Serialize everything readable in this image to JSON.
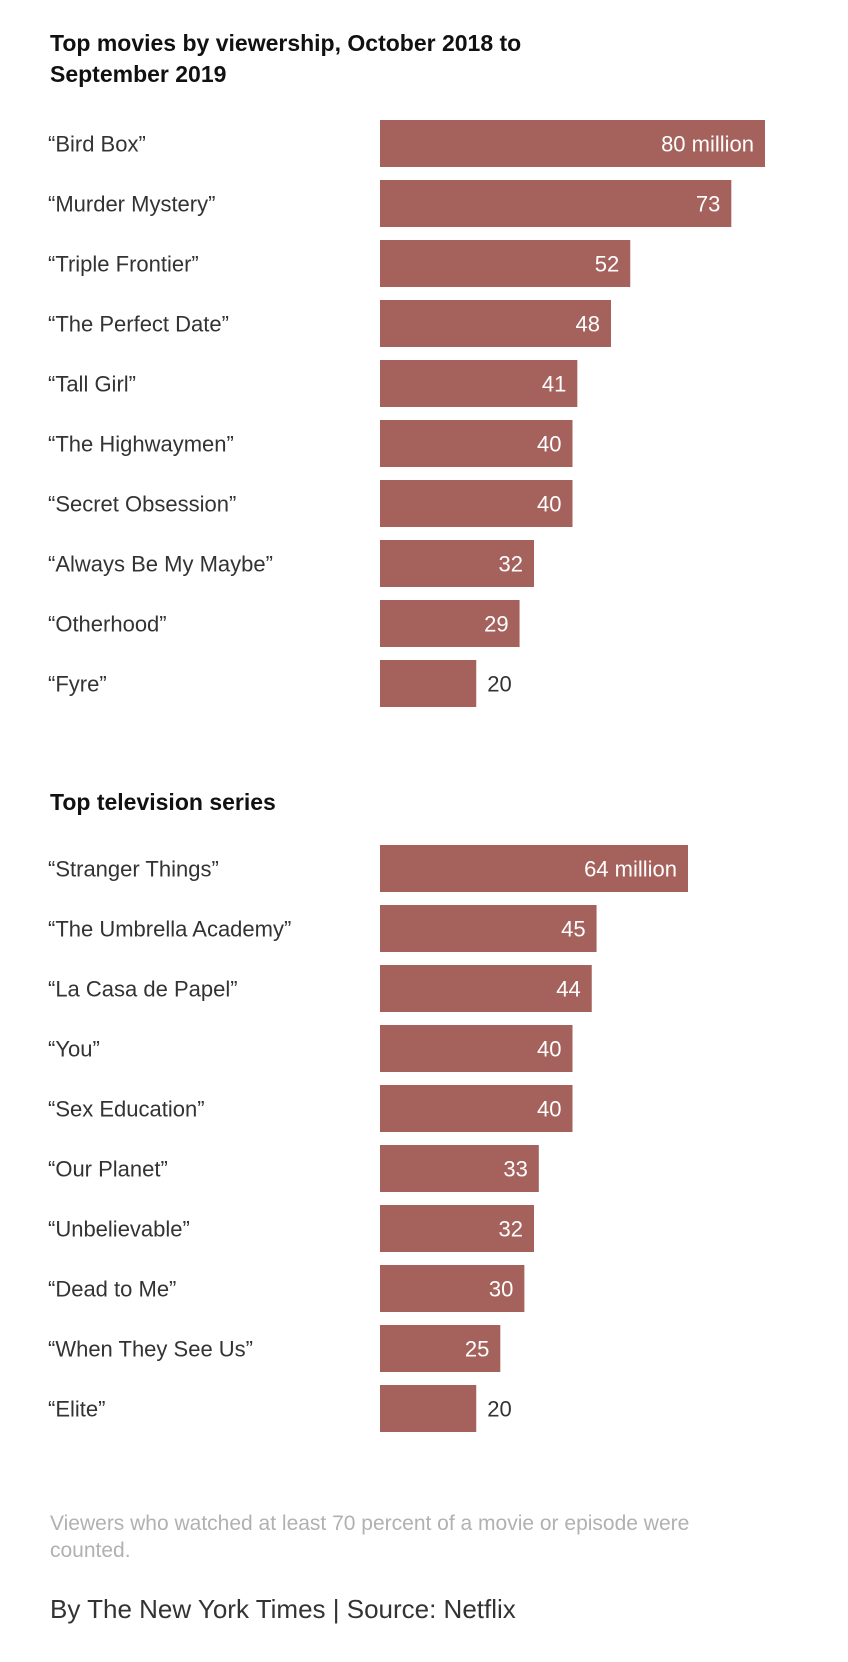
{
  "chart_data": [
    {
      "type": "bar",
      "orientation": "horizontal",
      "title": "Top movies by viewership, October 2018 to September 2019",
      "unit": "million",
      "categories": [
        "“Bird Box”",
        "“Murder Mystery”",
        "“Triple Frontier”",
        "“The Perfect Date”",
        "“Tall Girl”",
        "“The Highwaymen”",
        "“Secret Obsession”",
        "“Always Be My Maybe”",
        "“Otherhood”",
        "“Fyre”"
      ],
      "values": [
        80,
        73,
        52,
        48,
        41,
        40,
        40,
        32,
        29,
        20
      ],
      "value_labels": [
        "80 million",
        "73",
        "52",
        "48",
        "41",
        "40",
        "40",
        "32",
        "29",
        "20"
      ],
      "xlim": [
        0,
        80
      ]
    },
    {
      "type": "bar",
      "orientation": "horizontal",
      "title": "Top television series",
      "unit": "million",
      "categories": [
        "“Stranger Things”",
        "“The Umbrella Academy”",
        "“La Casa de Papel”",
        "“You”",
        "“Sex Education”",
        "“Our Planet”",
        "“Unbelievable”",
        "“Dead to Me”",
        "“When They See Us”",
        "“Elite”"
      ],
      "values": [
        64,
        45,
        44,
        40,
        40,
        33,
        32,
        30,
        25,
        20
      ],
      "value_labels": [
        "64 million",
        "45",
        "44",
        "40",
        "40",
        "33",
        "32",
        "30",
        "25",
        "20"
      ],
      "xlim": [
        0,
        80
      ]
    }
  ],
  "note": "Viewers who watched at least 70 percent of a movie or episode were counted.",
  "credit": "By The New York Times | Source: Netflix",
  "colors": {
    "bar": "#a5615c",
    "label_inside": "#ffffff",
    "label_outside": "#333333",
    "note": "#b1b1b1"
  }
}
